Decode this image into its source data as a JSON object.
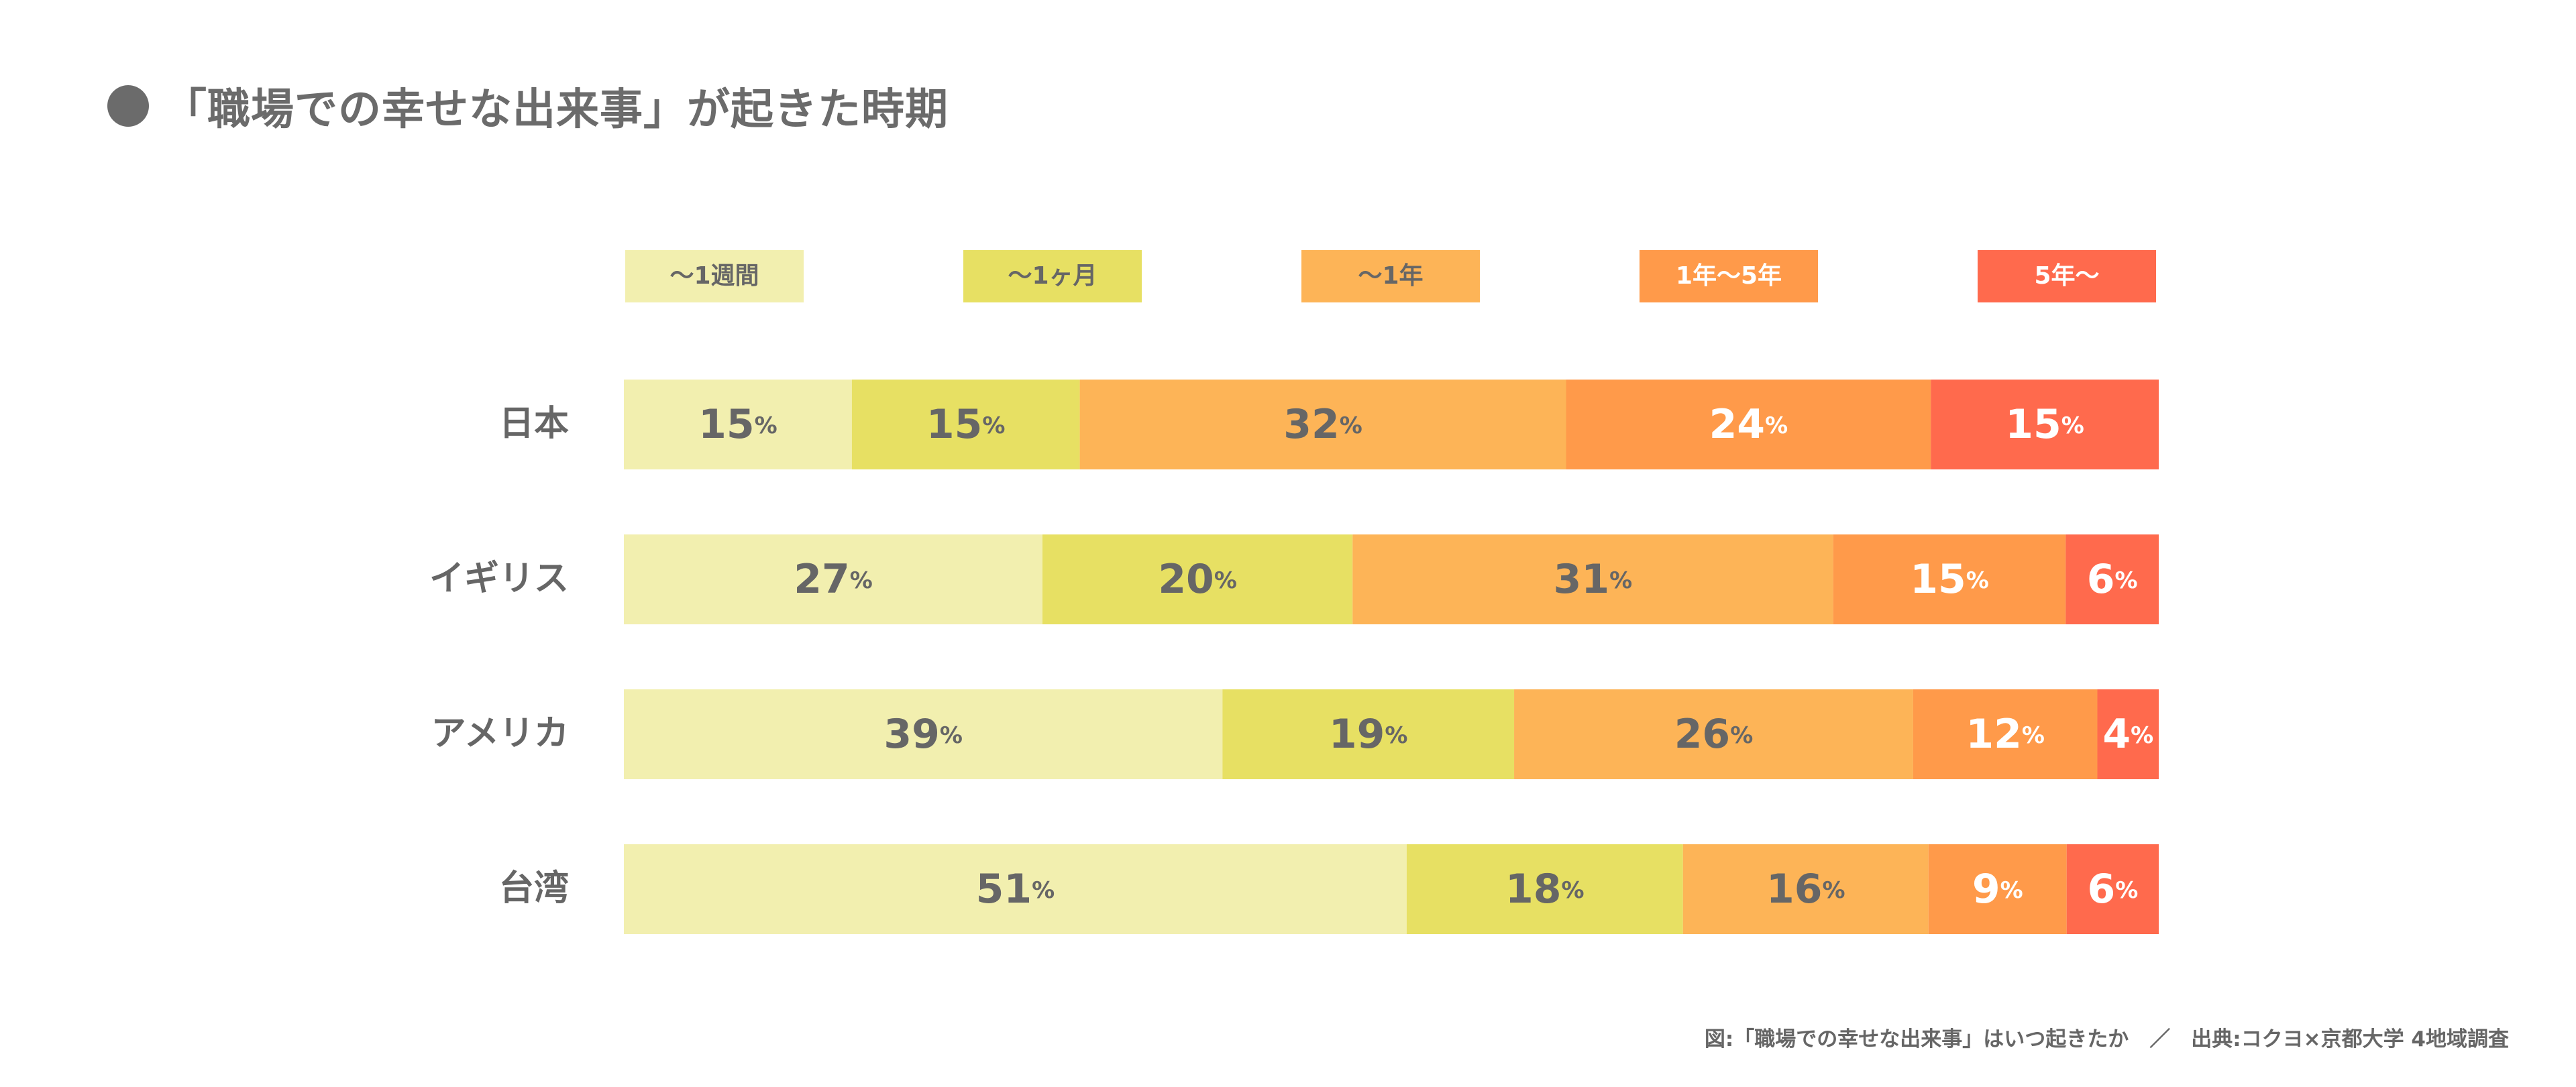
{
  "title": "「職場での幸せな出来事」が起きた時期",
  "footnote": "図:「職場での幸せな出来事」はいつ起きたか　／　出典:コクヨ×京都大学 4地域調査",
  "chart_data": {
    "type": "bar",
    "orientation": "horizontal",
    "stacked": true,
    "percent_suffix": "%",
    "categories": [
      "日本",
      "イギリス",
      "アメリカ",
      "台湾"
    ],
    "series": [
      {
        "name": "〜1週間",
        "color": "#F2EFAF",
        "text_color": "#666666",
        "values": [
          15,
          27,
          39,
          51
        ]
      },
      {
        "name": "〜1ヶ月",
        "color": "#E7E063",
        "text_color": "#666666",
        "values": [
          15,
          20,
          19,
          18
        ]
      },
      {
        "name": "〜1年",
        "color": "#FDB457",
        "text_color": "#666666",
        "values": [
          32,
          31,
          26,
          16
        ]
      },
      {
        "name": "1年〜5年",
        "color": "#FF9A4A",
        "text_color": "#ffffff",
        "values": [
          24,
          15,
          12,
          9
        ]
      },
      {
        "name": "5年〜",
        "color": "#FF6A4D",
        "text_color": "#ffffff",
        "values": [
          15,
          6,
          4,
          6
        ]
      }
    ],
    "legend_position": "top",
    "grid": false
  }
}
